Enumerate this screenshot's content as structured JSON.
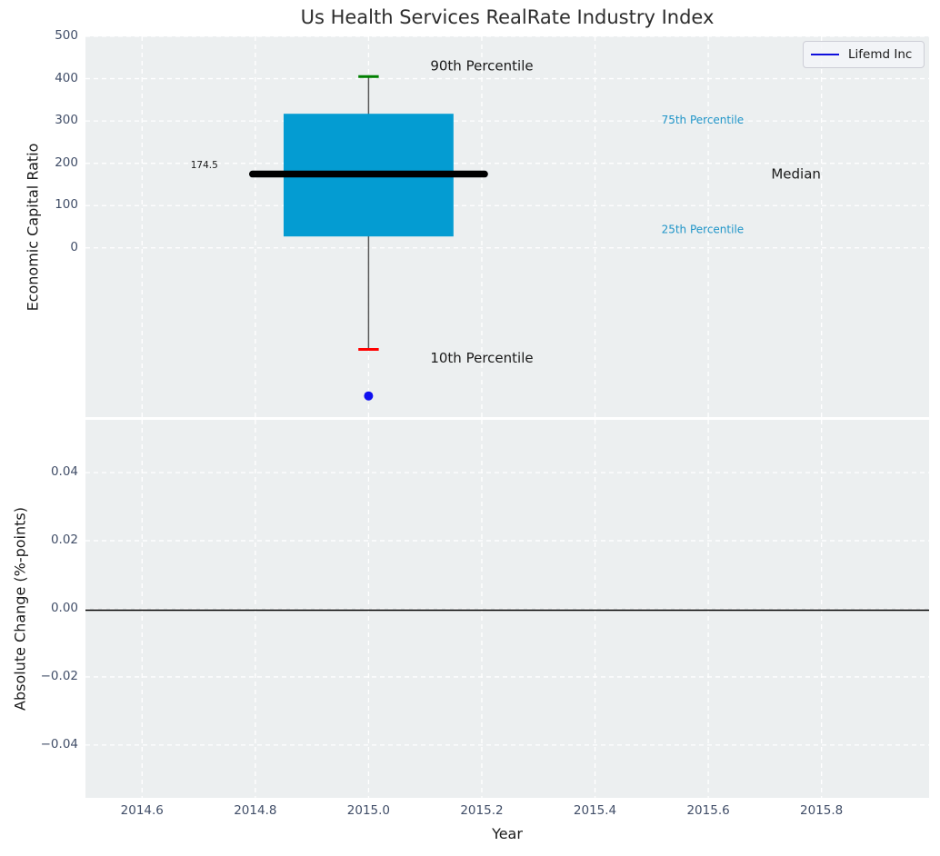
{
  "title": "Us Health Services RealRate Industry Index",
  "legend": {
    "label": "Lifemd Inc",
    "line_color": "#0f0fdc"
  },
  "axes": {
    "x": {
      "label": "Year",
      "range": [
        2014.5,
        2015.99
      ],
      "ticks": [
        {
          "value": 2014.6,
          "label": "2014.6"
        },
        {
          "value": 2014.8,
          "label": "2014.8"
        },
        {
          "value": 2015.0,
          "label": "2015.0"
        },
        {
          "value": 2015.2,
          "label": "2015.2"
        },
        {
          "value": 2015.4,
          "label": "2015.4"
        },
        {
          "value": 2015.6,
          "label": "2015.6"
        },
        {
          "value": 2015.8,
          "label": "2015.8"
        }
      ]
    },
    "top": {
      "ylabel": "Economic Capital Ratio",
      "range": [
        -400,
        500
      ],
      "ticks": [
        {
          "value": 500,
          "label": "500"
        },
        {
          "value": 400,
          "label": "400"
        },
        {
          "value": 300,
          "label": "300"
        },
        {
          "value": 200,
          "label": "200"
        },
        {
          "value": 100,
          "label": "100"
        },
        {
          "value": 0,
          "label": "0"
        }
      ]
    },
    "bottom": {
      "ylabel": "Absolute Change (%-points)",
      "range": [
        -0.0555,
        0.0555
      ],
      "ticks": [
        {
          "value": 0.04,
          "label": "0.04"
        },
        {
          "value": 0.02,
          "label": "0.02"
        },
        {
          "value": 0.0,
          "label": "0.00"
        },
        {
          "value": -0.02,
          "label": "−0.02"
        },
        {
          "value": -0.04,
          "label": "−0.04"
        }
      ]
    }
  },
  "chart_data": [
    {
      "type": "boxplot",
      "title": "Us Health Services RealRate Industry Index",
      "xlabel": "Year",
      "ylabel": "Economic Capital Ratio",
      "ylim": [
        -400,
        500
      ],
      "xlim": [
        2014.5,
        2015.99
      ],
      "grid": "white dashed",
      "legend_position": "upper right",
      "box": {
        "x": 2015.0,
        "p10": -240,
        "p25": 27,
        "median": 174.5,
        "p75": 317,
        "p90": 405,
        "median_label": "174.5",
        "box_halfwidth_years": 0.15,
        "median_halfwidth_years": 0.205,
        "cap_halfwidth_years": 0.018,
        "box_color": "#049cd2",
        "median_color": "#000000",
        "whisker_color": "#5a5a5a",
        "p90_cap_color": "#008000",
        "p10_cap_color": "#ff0000"
      },
      "series": [
        {
          "name": "Lifemd Inc",
          "type": "scatter",
          "color": "#0f0ff0",
          "points": [
            {
              "x": 2015.0,
              "y": -350
            }
          ]
        }
      ],
      "annotations": [
        {
          "name": "annotation-90th-percentile",
          "text": "90th Percentile",
          "x": 2015.2,
          "y": 430,
          "color": "#1a1a1a",
          "size": 15
        },
        {
          "name": "annotation-10th-percentile",
          "text": "10th Percentile",
          "x": 2015.2,
          "y": -260,
          "color": "#1a1a1a",
          "size": 15
        },
        {
          "name": "annotation-75th-percentile",
          "text": "75th Percentile",
          "x": 2015.59,
          "y": 302,
          "color": "#2095c8",
          "size": 12
        },
        {
          "name": "annotation-25th-percentile",
          "text": "25th Percentile",
          "x": 2015.59,
          "y": 44,
          "color": "#2095c8",
          "size": 12
        },
        {
          "name": "annotation-median",
          "text": "Median",
          "x": 2015.755,
          "y": 174.5,
          "color": "#1a1a1a",
          "size": 15
        },
        {
          "name": "annotation-median-value",
          "text": "174.5",
          "x": 2014.71,
          "y": 195,
          "color": "#1a1a1a",
          "size": 10.5
        }
      ]
    },
    {
      "type": "line",
      "title": "",
      "xlabel": "Year",
      "ylabel": "Absolute Change (%-points)",
      "ylim": [
        -0.0555,
        0.0555
      ],
      "xlim": [
        2014.5,
        2015.99
      ],
      "grid": "white dashed",
      "zero_line": 0.0,
      "series": []
    }
  ],
  "style": {
    "axes_bg": "#eceff0",
    "grid_color": "#ffffff",
    "tick_color": "#414e68",
    "label_color": "#1a1a1a",
    "title_color": "#2d2d2d"
  }
}
